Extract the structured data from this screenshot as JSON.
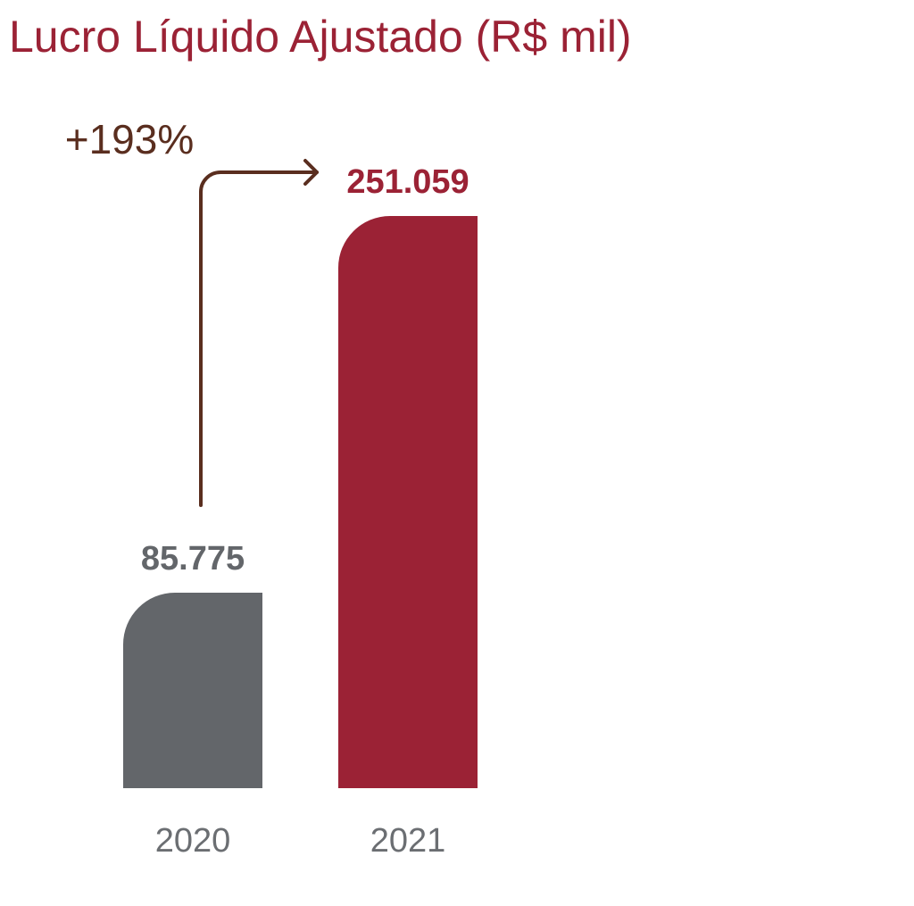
{
  "chart_data": {
    "type": "bar",
    "title": "Lucro Líquido Ajustado (R$ mil)",
    "categories": [
      "2020",
      "2021"
    ],
    "values": [
      85775,
      251059
    ],
    "value_labels": [
      "85.775",
      "251.059"
    ],
    "annotation": "+193%",
    "xlabel": "",
    "ylabel": "",
    "grid": false,
    "colors": {
      "title": "#9b2235",
      "bars": [
        "#63666a",
        "#9b2235"
      ],
      "value_labels": [
        "#63666a",
        "#9b2235"
      ],
      "category_labels": "#6b6e72",
      "annotation": "#5a2e1f"
    }
  }
}
